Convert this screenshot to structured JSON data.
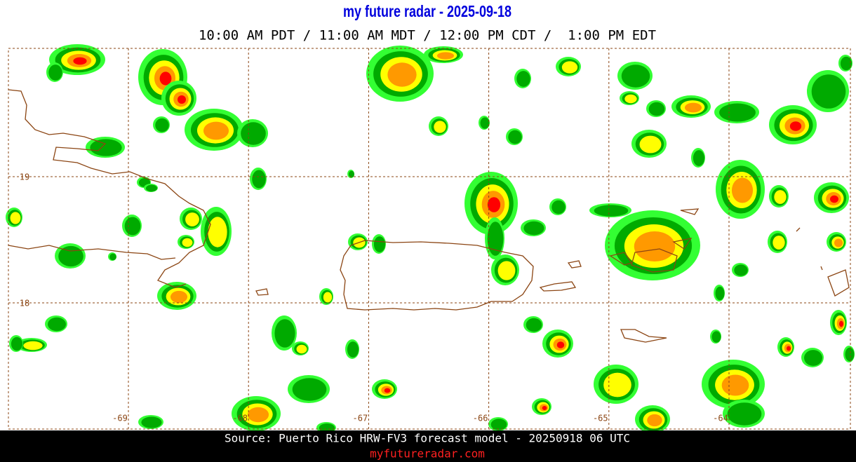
{
  "header": {
    "title": "my future radar - 2025-09-18",
    "subtitle": "10:00 AM PDT / 11:00 AM MDT / 12:00 PM CDT /  1:00 PM EDT"
  },
  "map": {
    "longitude_labels": [
      "-69",
      "-68",
      "-67",
      "-66",
      "-65",
      "-64"
    ],
    "latitude_labels": [
      "19",
      "18"
    ]
  },
  "footer": {
    "source": "Source: Puerto Rico HRW-FV3 forecast model - 20250918 06 UTC",
    "url": "myfutureradar.com"
  }
}
